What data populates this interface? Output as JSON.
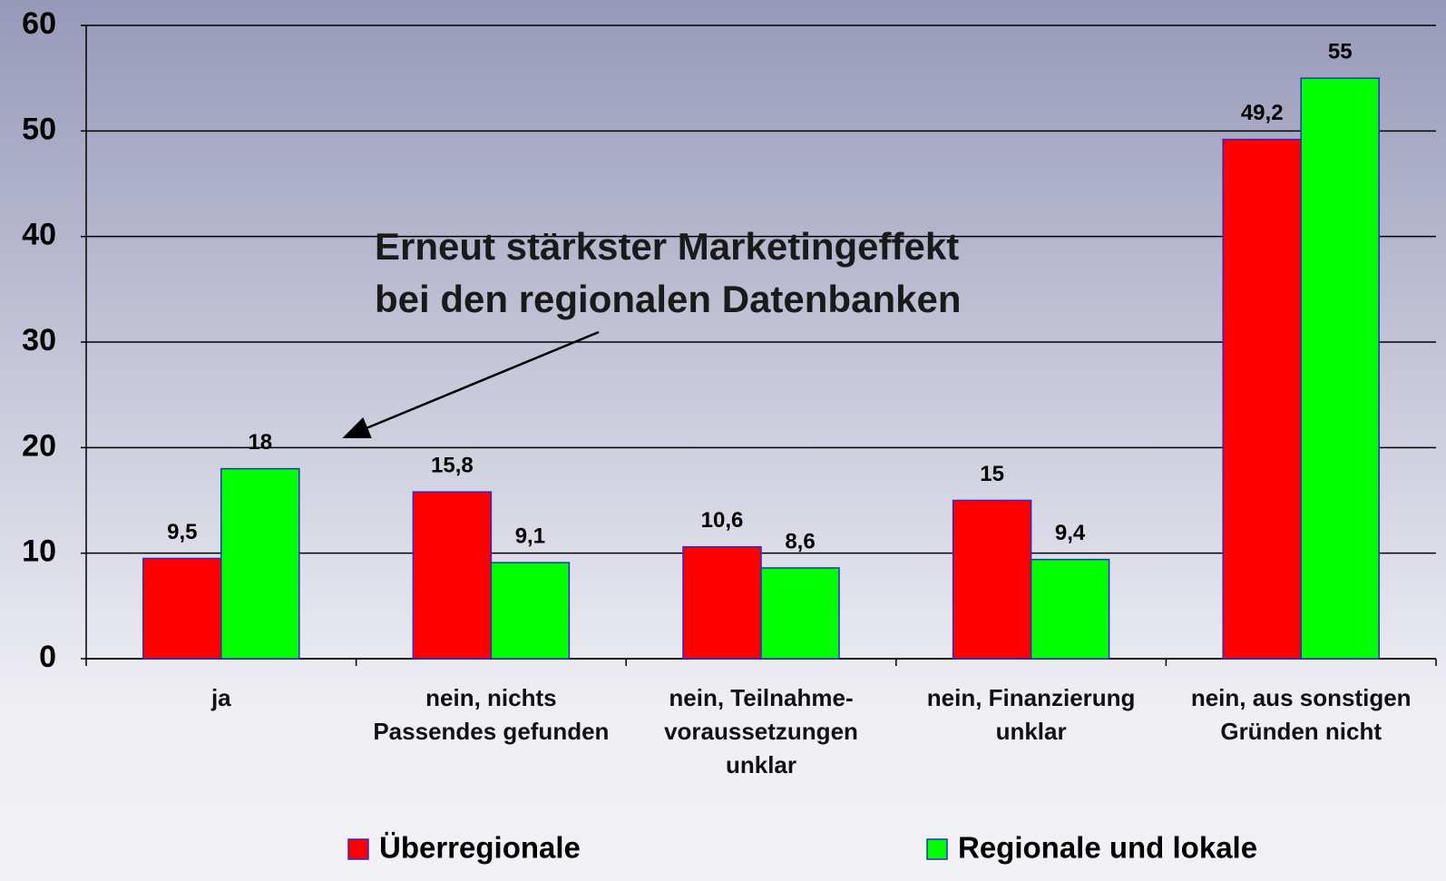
{
  "chart_data": {
    "type": "bar",
    "annotation": "Erneut stärkster Marketingeffekt\nbei den regionalen Datenbanken",
    "categories": [
      "ja",
      "nein, nichts\nPassendes gefunden",
      "nein, Teilnahme-\nvoraussetzungen\nunklar",
      "nein, Finanzierung\nunklar",
      "nein, aus sonstigen\nGründen nicht"
    ],
    "series": [
      {
        "name": "Überregionale",
        "color": "#ff0000",
        "values": [
          9.5,
          15.8,
          10.6,
          15,
          49.2
        ],
        "value_labels": [
          "9,5",
          "15,8",
          "10,6",
          "15",
          "49,2"
        ]
      },
      {
        "name": "Regionale und lokale",
        "color": "#00ff00",
        "values": [
          18,
          9.1,
          8.6,
          9.4,
          55
        ],
        "value_labels": [
          "18",
          "9,1",
          "8,6",
          "9,4",
          "55"
        ]
      }
    ],
    "ylim": [
      0,
      60
    ],
    "yticks": [
      0,
      10,
      20,
      30,
      40,
      50,
      60
    ],
    "grid": true,
    "legend": "bottom"
  }
}
